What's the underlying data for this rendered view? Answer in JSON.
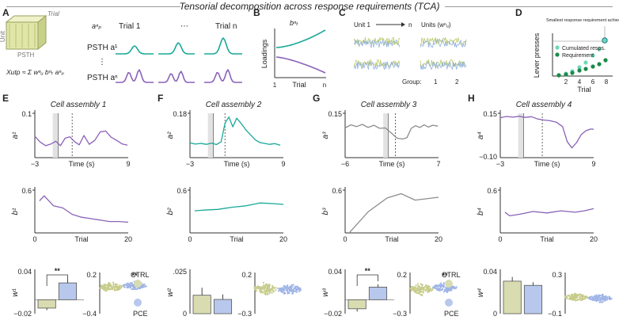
{
  "header": {
    "title": "Tensorial decomposition across response requirements (TCA)"
  },
  "colors": {
    "teal": "#1aa898",
    "purple": "#8a62b8",
    "gray": "#8c8c8c",
    "ctrl": "#d8dcb0",
    "pce": "#b8c8ec",
    "ctrl_dot": "#c7cc8a",
    "pce_dot": "#9fb4e6",
    "green_light": "#6fd8b8",
    "green_dark": "#1a8a4a"
  },
  "panels_top": {
    "A": {
      "letter": "A",
      "trial_label": "Trial",
      "unit_label": "Unit",
      "psth_label": "PSTH",
      "formula": "Xutp ≈ Σ wⁿᵤ bⁿₜ aⁿₚ",
      "a_header": "aⁿₚ",
      "cols": [
        "Trial 1",
        "⋯",
        "Trial n"
      ],
      "rows": [
        "PSTH a¹",
        "PSTH aⁿ"
      ],
      "vdots": "⋮"
    },
    "B": {
      "letter": "B",
      "ylabel": "Loadings",
      "xlabel": "Trial",
      "curve_label": "bⁿₜ",
      "x_start": "1",
      "x_end": "n"
    },
    "C": {
      "letter": "C",
      "unit_label": "Unit 1",
      "arrow_end": "n",
      "units_label": "Units (wⁿᵤ)",
      "group_label": "Group:",
      "group1": "1",
      "group2": "2"
    },
    "D": {
      "letter": "D",
      "annotation": "Smallest response requirement achieved",
      "legend": [
        "Cumulated resps.",
        "Requirement"
      ],
      "ylabel": "Lever presses",
      "xlabel": "Trial",
      "xticks": [
        "2",
        "4",
        "6",
        "8"
      ]
    }
  },
  "chart_data": [
    {
      "panel": "E",
      "type": "line",
      "title": "Cell assembly 1",
      "ylabel": "a¹",
      "xlabel": "Time (s)",
      "xlim": [
        -3,
        9
      ],
      "ylim": [
        0.05,
        0.15
      ],
      "ytick_top": "0.1",
      "xtick_left": "−3",
      "xtick_right": "9",
      "x": [
        -3,
        -2.3,
        -1.6,
        -0.9,
        -0.3,
        0.3,
        0.9,
        1.5,
        2.1,
        2.7,
        3.3,
        4.0,
        4.7,
        5.4,
        6.1,
        6.8,
        7.5,
        8.2,
        8.9
      ],
      "y": [
        0.098,
        0.085,
        0.077,
        0.081,
        0.087,
        0.077,
        0.094,
        0.097,
        0.086,
        0.079,
        0.1,
        0.08,
        0.089,
        0.108,
        0.11,
        0.096,
        0.089,
        0.081,
        0.078
      ],
      "line_color": "#8a62b8"
    },
    {
      "panel": "F",
      "type": "line",
      "title": "Cell assembly 2",
      "ylabel": "a²",
      "xlabel": "Time (s)",
      "xlim": [
        -3,
        9
      ],
      "ylim": [
        0.0,
        0.18
      ],
      "ytick_top": "0.18",
      "xtick_left": "−3",
      "xtick_right": "9",
      "x": [
        -3,
        -2.3,
        -1.6,
        -0.9,
        -0.2,
        0.4,
        1.0,
        1.5,
        2.0,
        2.5,
        3.0,
        3.6,
        4.2,
        4.8,
        5.4,
        6.0,
        6.6,
        7.2,
        7.9,
        8.6
      ],
      "y": [
        0.06,
        0.055,
        0.058,
        0.054,
        0.059,
        0.053,
        0.064,
        0.14,
        0.165,
        0.125,
        0.16,
        0.138,
        0.112,
        0.092,
        0.072,
        0.061,
        0.058,
        0.054,
        0.057,
        0.05
      ],
      "line_color": "#1aa898"
    },
    {
      "panel": "G",
      "type": "line",
      "title": "Cell assembly 3",
      "ylabel": "a³",
      "xlabel": "Time (s)",
      "xlim": [
        -6,
        7
      ],
      "ylim": [
        0.05,
        0.15
      ],
      "ytick_top": "0.15",
      "xtick_left": "−6",
      "xtick_right": "7",
      "x": [
        -6,
        -5.2,
        -4.4,
        -3.6,
        -2.8,
        -2.0,
        -1.2,
        -0.4,
        0.4,
        1.2,
        2.0,
        2.6,
        3.2,
        3.8,
        4.4,
        5.0,
        5.6,
        6.2,
        6.9
      ],
      "y": [
        0.117,
        0.124,
        0.12,
        0.125,
        0.118,
        0.123,
        0.116,
        0.117,
        0.106,
        0.094,
        0.092,
        0.095,
        0.116,
        0.122,
        0.118,
        0.124,
        0.119,
        0.123,
        0.121
      ],
      "line_color": "#8c8c8c"
    },
    {
      "panel": "H",
      "type": "line",
      "title": "Cell assembly 4",
      "ylabel": "a⁴",
      "xlabel": "Time (s)",
      "xlim": [
        -3,
        9
      ],
      "ylim": [
        -0.1,
        0.15
      ],
      "ytick_top": "0.15",
      "ytick_bottom": "−0.10",
      "xtick_left": "−3",
      "xtick_right": "9",
      "x": [
        -3,
        -2.2,
        -1.4,
        -0.6,
        0.2,
        1.0,
        1.8,
        2.6,
        3.4,
        4.2,
        5.0,
        5.6,
        6.2,
        6.8,
        7.4,
        8.0,
        8.6,
        9.0
      ],
      "y": [
        0.125,
        0.132,
        0.128,
        0.133,
        0.127,
        0.131,
        0.118,
        0.112,
        0.108,
        0.1,
        0.075,
        -0.01,
        -0.045,
        -0.015,
        0.03,
        0.052,
        0.061,
        0.06
      ],
      "line_color": "#8a62b8"
    },
    {
      "panel": "E",
      "type": "line",
      "ylabel": "b¹",
      "xlabel": "Trial",
      "xlim": [
        0,
        20
      ],
      "ylim": [
        0,
        0.6
      ],
      "ytick_top": "0.6",
      "xtick_left": "0",
      "xtick_right": "20",
      "x": [
        1,
        2,
        4,
        6,
        8,
        10,
        12,
        14,
        16,
        18,
        20
      ],
      "y": [
        0.45,
        0.52,
        0.38,
        0.35,
        0.26,
        0.22,
        0.2,
        0.18,
        0.16,
        0.16,
        0.15
      ],
      "line_color": "#8a62b8"
    },
    {
      "panel": "F",
      "type": "line",
      "ylabel": "b²",
      "xlabel": "Trial",
      "xlim": [
        0,
        20
      ],
      "ylim": [
        0,
        0.6
      ],
      "ytick_top": "0.6",
      "xtick_left": "0",
      "xtick_right": "20",
      "x": [
        1,
        3,
        6,
        9,
        12,
        15,
        18,
        20
      ],
      "y": [
        0.31,
        0.32,
        0.33,
        0.36,
        0.38,
        0.42,
        0.41,
        0.4
      ],
      "line_color": "#1aa898"
    },
    {
      "panel": "G",
      "type": "line",
      "ylabel": "b³",
      "xlabel": "Trial",
      "xlim": [
        0,
        20
      ],
      "ylim": [
        0,
        0.6
      ],
      "ytick_top": "0.6",
      "xtick_left": "0",
      "xtick_right": "20",
      "x": [
        1,
        5,
        9,
        12,
        15,
        20
      ],
      "y": [
        0.01,
        0.3,
        0.49,
        0.55,
        0.46,
        0.5
      ],
      "line_color": "#8c8c8c"
    },
    {
      "panel": "H",
      "type": "line",
      "ylabel": "b⁴",
      "xlabel": "Trial",
      "xlim": [
        0,
        20
      ],
      "ylim": [
        0,
        0.6
      ],
      "ytick_top": "0.6",
      "xtick_left": "0",
      "xtick_right": "20",
      "x": [
        1,
        2,
        4,
        7,
        10,
        13,
        16,
        18,
        20
      ],
      "y": [
        0.29,
        0.24,
        0.26,
        0.3,
        0.28,
        0.31,
        0.29,
        0.31,
        0.34
      ],
      "line_color": "#8a62b8"
    },
    {
      "panel": "E",
      "type": "bar",
      "ylabel": "w¹",
      "categories": [
        "CTRL",
        "PCE"
      ],
      "values": [
        -0.012,
        0.024
      ],
      "errors": [
        0.003,
        0.004
      ],
      "ylim": [
        -0.02,
        0.04
      ],
      "ytick_top": "0.04",
      "ytick_bottom": "−0.02",
      "significance": "**"
    },
    {
      "panel": "F",
      "type": "bar",
      "ylabel": "w²",
      "categories": [
        "CTRL",
        "PCE"
      ],
      "values": [
        0.011,
        0.0085
      ],
      "errors": [
        0.0045,
        0.003
      ],
      "ylim": [
        0,
        0.025
      ],
      "ytick_top": ".025",
      "ytick_bottom": "0",
      "significance": ""
    },
    {
      "panel": "G",
      "type": "bar",
      "ylabel": "w³",
      "categories": [
        "CTRL",
        "PCE"
      ],
      "values": [
        -0.013,
        0.018
      ],
      "errors": [
        0.004,
        0.004
      ],
      "ylim": [
        -0.02,
        0.04
      ],
      "ytick_top": "0.04",
      "ytick_bottom": "−0.02",
      "significance": "**"
    },
    {
      "panel": "H",
      "type": "bar",
      "ylabel": "w⁴",
      "categories": [
        "CTRL",
        "PCE"
      ],
      "values": [
        0.031,
        0.027
      ],
      "errors": [
        0.004,
        0.003
      ],
      "ylim": [
        0,
        0.04
      ],
      "ytick_top": "0.04",
      "ytick_bottom": "0",
      "significance": ""
    },
    {
      "panel": "E",
      "type": "scatter",
      "ylim": [
        -0.4,
        0.2
      ],
      "ytick_top": "0.2",
      "ytick_bottom": "−0.4",
      "ctrl_center": 0.01,
      "pce_center": 0.03,
      "ctrl_spread": 0.09,
      "pce_spread": 0.08,
      "significance": "**"
    },
    {
      "panel": "F",
      "type": "scatter",
      "ylim": [
        -0.3,
        0.2
      ],
      "ytick_top": "0.2",
      "ytick_bottom": "−0.3",
      "ctrl_center": 0.02,
      "pce_center": 0.01,
      "ctrl_spread": 0.1,
      "pce_spread": 0.09,
      "significance": ""
    },
    {
      "panel": "G",
      "type": "scatter",
      "ylim": [
        -0.3,
        0.2
      ],
      "ytick_top": "0.2",
      "ytick_bottom": "−0.3",
      "ctrl_center": 0.02,
      "pce_center": 0.04,
      "ctrl_spread": 0.09,
      "pce_spread": 0.08,
      "significance": "**"
    },
    {
      "panel": "H",
      "type": "scatter",
      "ylim": [
        -0.1,
        0.3
      ],
      "ytick_top": "0.3",
      "ytick_bottom": "−0.1",
      "ctrl_center": 0.07,
      "pce_center": 0.06,
      "ctrl_spread": 0.05,
      "pce_spread": 0.05,
      "significance": ""
    },
    {
      "panel": "legend",
      "type": "legend",
      "ctrl_label": "CTRL",
      "pce_label": "PCE"
    }
  ]
}
